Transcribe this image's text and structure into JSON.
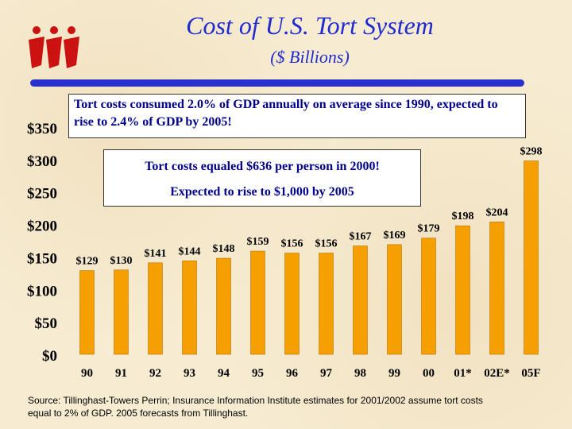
{
  "title": "Cost of U.S. Tort System",
  "subtitle": "($ Billions)",
  "annotations": {
    "gdp_note": "Tort costs consumed 2.0% of GDP annually on average since 1990, expected to rise to 2.4% of GDP by 2005!",
    "per_person_line1": "Tort costs equaled $636 per person in 2000!",
    "per_person_line2": "Expected to rise to $1,000 by 2005"
  },
  "source": "Source:  Tillinghast-Towers Perrin; Insurance Information Institute estimates for 2001/2002 assume tort costs equal to 2% of GDP. 2005 forecasts from Tillinghast.",
  "colors": {
    "bar": "#f5a000",
    "bar_edge": "#b87400",
    "title": "#1f2bd0",
    "annotation": "#00008a",
    "logo": "#cc1111"
  },
  "chart_data": {
    "type": "bar",
    "title": "Cost of U.S. Tort System",
    "ylabel": "$ Billions",
    "xlabel": "",
    "ylim": [
      0,
      350
    ],
    "yticks": [
      0,
      50,
      100,
      150,
      200,
      250,
      300,
      350
    ],
    "ytick_labels": [
      "$0",
      "$50",
      "$100",
      "$150",
      "$200",
      "$250",
      "$300",
      "$350"
    ],
    "categories": [
      "90",
      "91",
      "92",
      "93",
      "94",
      "95",
      "96",
      "97",
      "98",
      "99",
      "00",
      "01*",
      "02E*",
      "05F"
    ],
    "values": [
      129,
      130,
      141,
      144,
      148,
      159,
      156,
      156,
      167,
      169,
      179,
      198,
      204,
      298
    ],
    "data_labels": [
      "$129",
      "$130",
      "$141",
      "$144",
      "$148",
      "$159",
      "$156",
      "$156",
      "$167",
      "$169",
      "$179",
      "$198",
      "$204",
      "$298"
    ],
    "grid": false
  }
}
